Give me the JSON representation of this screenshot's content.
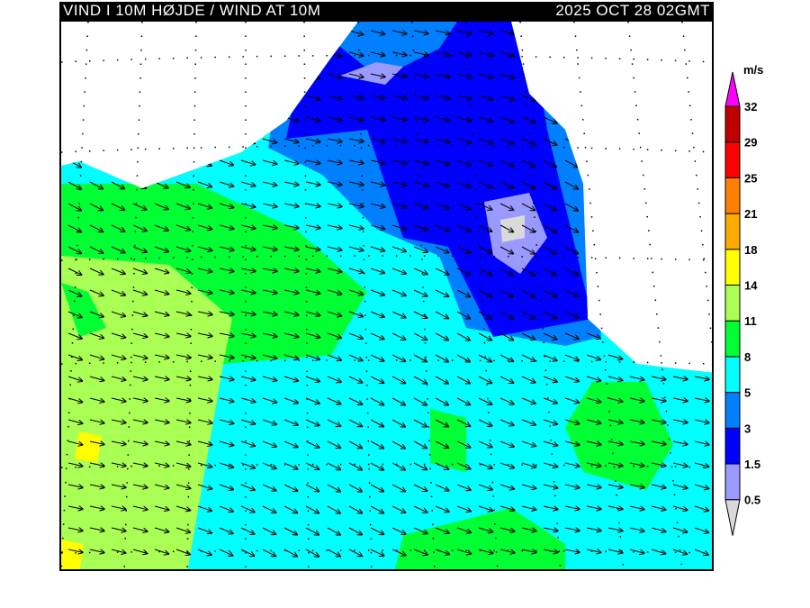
{
  "header": {
    "title": "VIND I 10M HØJDE / WIND AT 10M",
    "datetime": "2025 OCT 28 02GMT"
  },
  "legend": {
    "unit": "m/s",
    "levels": [
      "0.5",
      "1.5",
      "3",
      "5",
      "8",
      "11",
      "14",
      "18",
      "21",
      "25",
      "29",
      "32"
    ],
    "colors": {
      "below_0.5": "#d9d9d9",
      "0.5-1.5": "#9999ff",
      "1.5-3": "#0000ff",
      "3-5": "#0080ff",
      "5-8": "#00ffff",
      "8-11": "#00ff33",
      "11-14": "#aaff55",
      "14-18": "#ffff00",
      "18-21": "#ffaa00",
      "21-25": "#ff8000",
      "25-29": "#ff0000",
      "29-32": "#c00000",
      "above_32": "#ff00ff"
    }
  },
  "map": {
    "land_color": "#ffffff",
    "wind_direction": "mostly from west-northwest, arrows pointing east-southeast"
  }
}
